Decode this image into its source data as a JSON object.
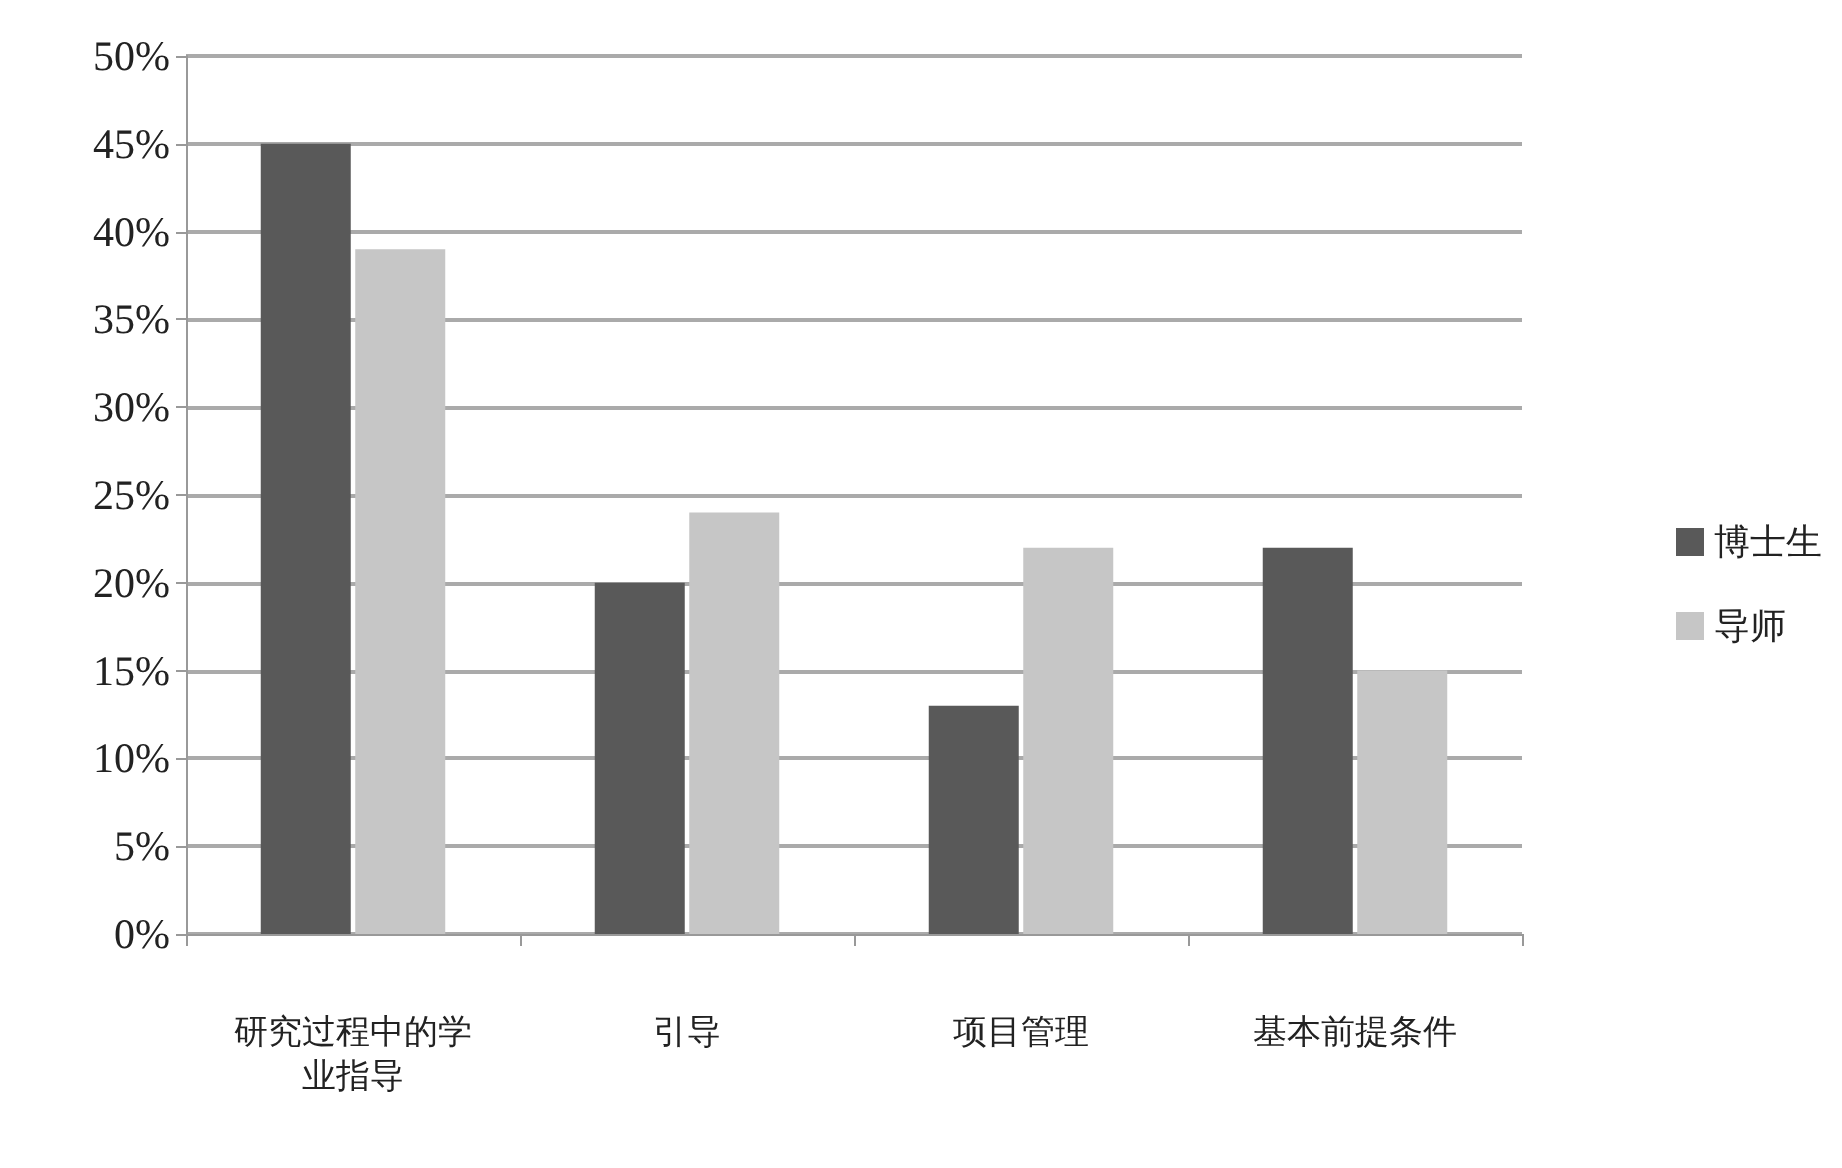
{
  "chart_data": {
    "type": "bar",
    "categories": [
      "研究过程中的学业指导",
      "引导",
      "项目管理",
      "基本前提条件"
    ],
    "series": [
      {
        "name": "博士生",
        "color": "#595959",
        "values": [
          45,
          20,
          13,
          22
        ]
      },
      {
        "name": "导师",
        "color": "#c6c6c6",
        "values": [
          39,
          24,
          22,
          15
        ]
      }
    ],
    "ylim": [
      0,
      50
    ],
    "yticks": [
      {
        "value": 0,
        "label": "0%"
      },
      {
        "value": 5,
        "label": "5%"
      },
      {
        "value": 10,
        "label": "10%"
      },
      {
        "value": 15,
        "label": "15%"
      },
      {
        "value": 20,
        "label": "20%"
      },
      {
        "value": 25,
        "label": "25%"
      },
      {
        "value": 30,
        "label": "30%"
      },
      {
        "value": 35,
        "label": "35%"
      },
      {
        "value": 40,
        "label": "40%"
      },
      {
        "value": 45,
        "label": "45%"
      },
      {
        "value": 50,
        "label": "50%"
      }
    ],
    "grid": "y",
    "legend": "right"
  }
}
